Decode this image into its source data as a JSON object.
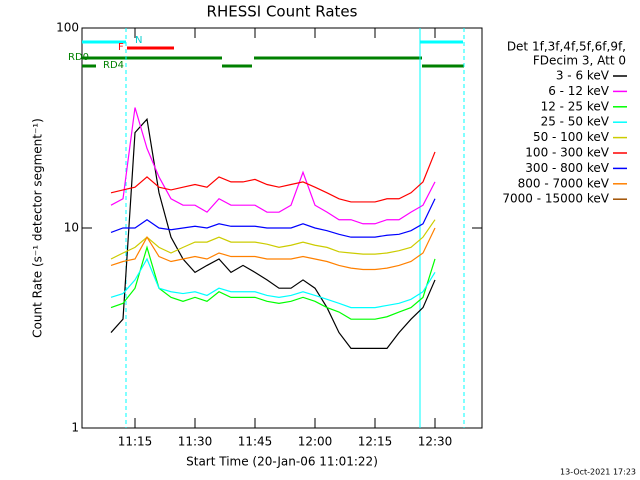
{
  "chart_data": {
    "type": "line",
    "title": "RHESSI Count Rates",
    "x_label": "Start Time (20-Jan-06 11:01:22)",
    "y_label": "Count Rate (s⁻¹ detector segment⁻¹)",
    "legend_header": [
      "Det 1f,3f,4f,5f,6f,9f,",
      "FDecim 3, Att 0"
    ],
    "legend": "outside right",
    "footer": "13-Oct-2021 17:23",
    "annotations": [
      "N",
      "F",
      "RD0",
      "RD4"
    ],
    "log_y": true,
    "x": [
      9,
      12,
      15,
      18,
      21,
      24,
      27,
      30,
      33,
      36,
      39,
      42,
      45,
      48,
      51,
      54,
      57,
      60,
      63,
      66,
      69,
      72,
      75,
      78,
      81,
      84,
      87,
      90
    ],
    "xlim": [
      1.75,
      101.75
    ],
    "xticks": [
      {
        "value": 15,
        "label": "11:15"
      },
      {
        "value": 30,
        "label": "11:30"
      },
      {
        "value": 45,
        "label": "11:45"
      },
      {
        "value": 60,
        "label": "12:00"
      },
      {
        "value": 75,
        "label": "12:15"
      },
      {
        "value": 90,
        "label": "12:30"
      }
    ],
    "ylim": [
      1,
      100
    ],
    "yticks": [
      1,
      10,
      100
    ],
    "series": [
      {
        "name": "3 - 6 keV",
        "color": "#000000",
        "values": [
          3,
          3.5,
          30,
          35,
          15,
          9,
          7,
          6,
          6.5,
          7,
          6,
          6.5,
          6,
          5.5,
          5,
          5,
          5.5,
          5,
          4,
          3,
          2.5,
          2.5,
          2.5,
          2.5,
          3,
          3.5,
          4,
          5.5
        ]
      },
      {
        "name": "6 - 12 keV",
        "color": "#ff00ff",
        "values": [
          13,
          14,
          40,
          25,
          18,
          14,
          13,
          13,
          12,
          14,
          13,
          13,
          13,
          12,
          12,
          13,
          19,
          13,
          12,
          11,
          11,
          10.5,
          10.5,
          11,
          11,
          12,
          13,
          17
        ]
      },
      {
        "name": "12 - 25 keV",
        "color": "#00ff00",
        "values": [
          4,
          4.2,
          5,
          8,
          5,
          4.5,
          4.3,
          4.5,
          4.3,
          4.8,
          4.5,
          4.5,
          4.5,
          4.3,
          4.2,
          4.3,
          4.5,
          4.3,
          4,
          3.8,
          3.5,
          3.5,
          3.5,
          3.6,
          3.8,
          4,
          4.5,
          7
        ]
      },
      {
        "name": "25 - 50 keV",
        "color": "#00ffff",
        "values": [
          4.5,
          4.7,
          5.5,
          7,
          5,
          4.8,
          4.7,
          4.8,
          4.6,
          5,
          4.8,
          4.8,
          4.8,
          4.6,
          4.5,
          4.6,
          4.8,
          4.6,
          4.4,
          4.2,
          4,
          4,
          4,
          4.1,
          4.2,
          4.4,
          4.8,
          6
        ]
      },
      {
        "name": "50 - 100 keV",
        "color": "#cccc00",
        "values": [
          7,
          7.5,
          8,
          9,
          8,
          7.5,
          8,
          8.5,
          8.5,
          9,
          8.5,
          8.5,
          8.5,
          8.3,
          8,
          8.2,
          8.5,
          8.2,
          8,
          7.6,
          7.5,
          7.4,
          7.4,
          7.5,
          7.7,
          8,
          9,
          11
        ]
      },
      {
        "name": "100 - 300 keV",
        "color": "#ff0000",
        "values": [
          15,
          15.5,
          16,
          18,
          16,
          15.5,
          16,
          16.5,
          16,
          18,
          17,
          17,
          17.5,
          16.5,
          16,
          16.5,
          17,
          16,
          15,
          14,
          13.5,
          13.5,
          13.5,
          14,
          14,
          15,
          17,
          24
        ]
      },
      {
        "name": "300 - 800 keV",
        "color": "#0000ff",
        "values": [
          9.5,
          10,
          10,
          11,
          10,
          9.8,
          10,
          10.2,
          10,
          10.5,
          10.2,
          10.2,
          10.2,
          10,
          10,
          10,
          10.5,
          10,
          9.7,
          9.3,
          9,
          9,
          9,
          9.2,
          9.3,
          9.7,
          10.5,
          14
        ]
      },
      {
        "name": "800 - 7000 keV",
        "color": "#ff8000",
        "values": [
          6.5,
          6.8,
          7,
          9,
          7.2,
          6.8,
          7,
          7.2,
          7,
          7.5,
          7.2,
          7.2,
          7.2,
          7,
          7,
          7,
          7.2,
          7,
          6.8,
          6.5,
          6.3,
          6.2,
          6.2,
          6.3,
          6.5,
          6.8,
          7.5,
          10
        ]
      },
      {
        "name": "7000 - 15000 keV",
        "color": "#a05000",
        "values": [
          null,
          null,
          null,
          null,
          null,
          null,
          null,
          null,
          null,
          null,
          null,
          null,
          null,
          null,
          null,
          null,
          null,
          null,
          null,
          null,
          null,
          null,
          null,
          null,
          null,
          null,
          null,
          null
        ]
      }
    ]
  }
}
